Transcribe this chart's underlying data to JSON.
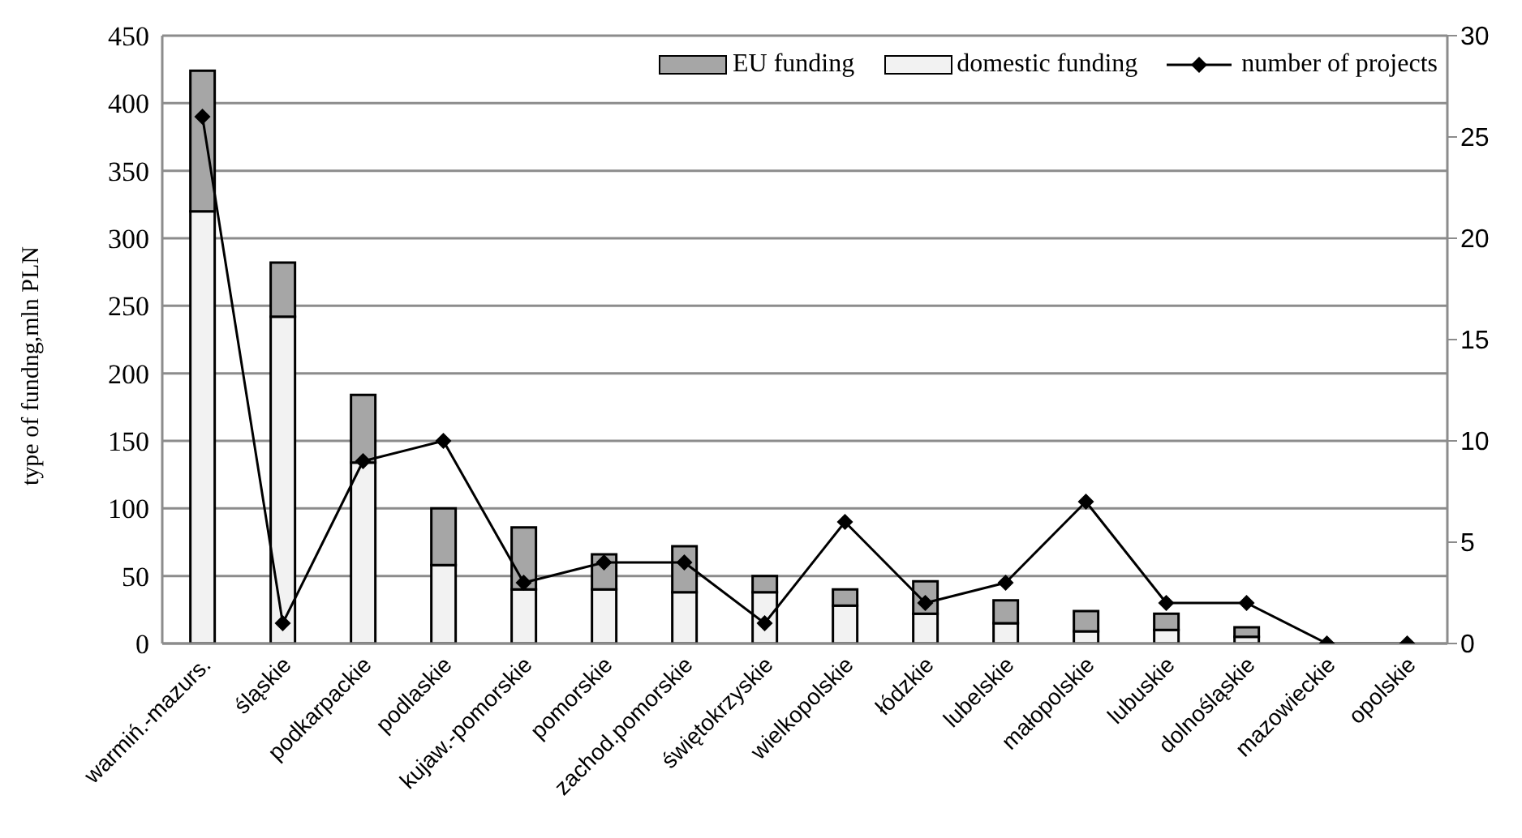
{
  "chart_data": {
    "type": "bar",
    "stacked": true,
    "ylabel": "type of fundng,mln PLN",
    "categories": [
      "warmiń.-mazurs.",
      "śląskie",
      "podkarpackie",
      "podlaskie",
      "kujaw.-pomorskie",
      "pomorskie",
      "zachod.pomorskie",
      "świętokrzyskie",
      "wielkopolskie",
      "łódzkie",
      "lubelskie",
      "małopolskie",
      "lubuskie",
      "dolnośląskie",
      "mazowieckie",
      "opolskie"
    ],
    "series": [
      {
        "name": "domestic funding",
        "color": "#f2f2f2",
        "values": [
          320,
          242,
          134,
          58,
          40,
          40,
          38,
          38,
          28,
          22,
          15,
          9,
          10,
          5,
          0,
          0
        ]
      },
      {
        "name": "EU funding",
        "color": "#a6a6a6",
        "values": [
          104,
          40,
          50,
          42,
          46,
          26,
          34,
          12,
          12,
          24,
          17,
          15,
          12,
          7,
          0,
          0
        ]
      },
      {
        "name": "number of projects",
        "type": "line",
        "axis": "y2",
        "color": "#000000",
        "marker": "diamond",
        "values": [
          26,
          1,
          9,
          10,
          3,
          4,
          4,
          1,
          6,
          2,
          3,
          7,
          2,
          2,
          0,
          0
        ]
      }
    ],
    "ylim": [
      0,
      450
    ],
    "yticks": [
      0,
      50,
      100,
      150,
      200,
      250,
      300,
      350,
      400,
      450
    ],
    "y2lim": [
      0,
      30
    ],
    "y2ticks": [
      0,
      5,
      10,
      15,
      20,
      25,
      30
    ],
    "grid": "y",
    "legend": "top right"
  }
}
